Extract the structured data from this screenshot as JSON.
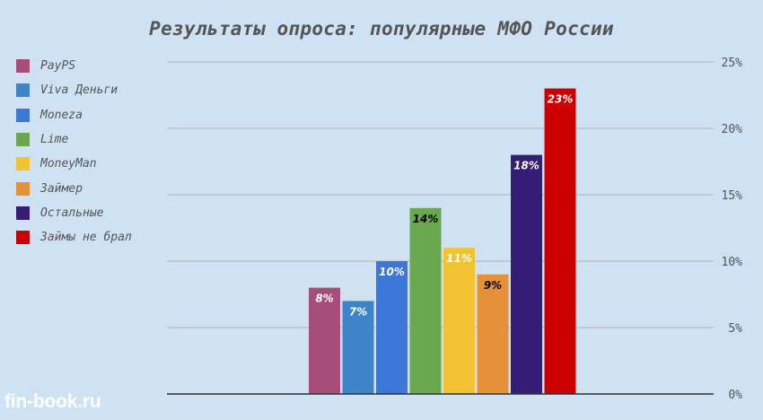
{
  "title": "Результаты опроса: популярные МФО России",
  "watermark": "fin-book.ru",
  "chart_data": {
    "type": "bar",
    "categories": [
      "PayPS",
      "Viva Деньги",
      "Moneza",
      "Lime",
      "MoneyMan",
      "Займер",
      "Остальные",
      "Займы не брал"
    ],
    "values": [
      8,
      7,
      10,
      14,
      11,
      9,
      18,
      23
    ],
    "data_labels": [
      "8%",
      "7%",
      "10%",
      "14%",
      "11%",
      "9%",
      "18%",
      "23%"
    ],
    "colors": [
      "#a64d79",
      "#3d85c6",
      "#3c78d8",
      "#6aa84f",
      "#f1c232",
      "#e69138",
      "#351c75",
      "#cc0000"
    ],
    "label_colors": [
      "#ffffff",
      "#ffffff",
      "#ffffff",
      "#000000",
      "#ffffff",
      "#000000",
      "#ffffff",
      "#ffffff"
    ],
    "ylim": [
      0,
      25
    ],
    "yticks": [
      0,
      5,
      10,
      15,
      20,
      25
    ],
    "ytick_labels": [
      "0%",
      "5%",
      "10%",
      "15%",
      "20%",
      "25%"
    ],
    "y_axis_side": "right",
    "grid": true,
    "legend": "left",
    "title": "Результаты опроса: популярные МФО России",
    "xlabel": "",
    "ylabel": ""
  }
}
